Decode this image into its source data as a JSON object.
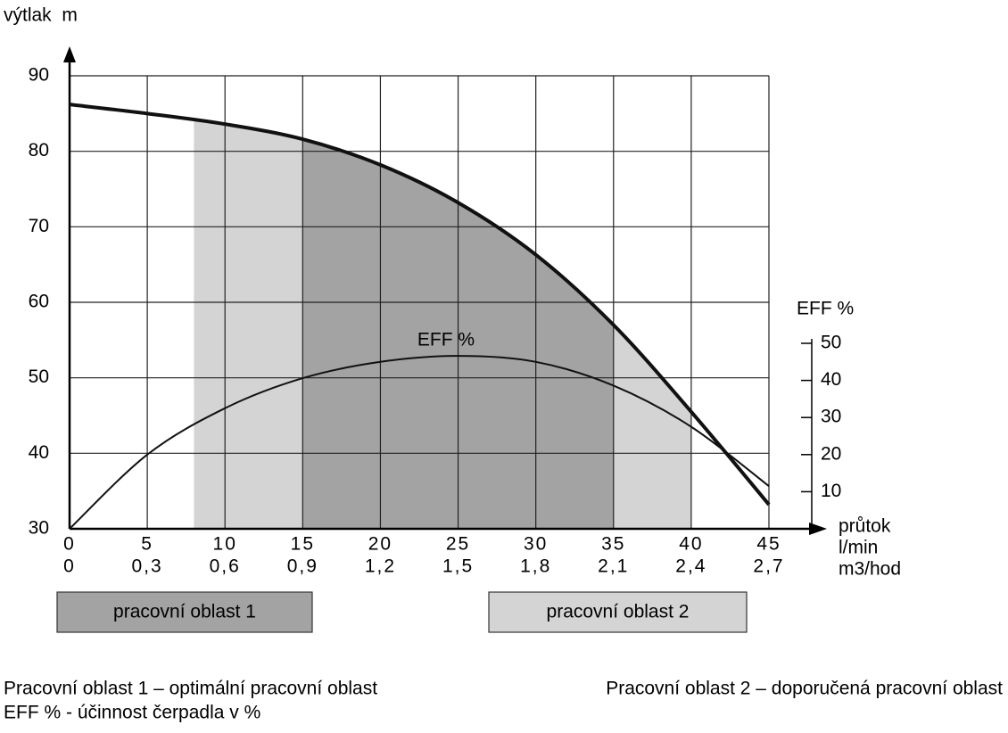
{
  "chart_data": {
    "type": "line",
    "y_label": "výtlak  m",
    "y2_label": "EFF %",
    "x_labels": [
      "průtok",
      "l/min",
      "m3/hod"
    ],
    "x": [
      0,
      5,
      10,
      15,
      20,
      25,
      30,
      35,
      40,
      45
    ],
    "x2_tick_labels": [
      "0",
      "0,3",
      "0,6",
      "0,9",
      "1,2",
      "1,5",
      "1,8",
      "2,1",
      "2,4",
      "2,7"
    ],
    "series": [
      {
        "name": "výtlak",
        "color": "#111111",
        "values": [
          86.2,
          85,
          83.6,
          81.6,
          78.2,
          73.2,
          66.3,
          57,
          45.5,
          33.2
        ]
      },
      {
        "name": "EFF %",
        "color": "#111111",
        "axis": "y2",
        "values": [
          0,
          20,
          32.5,
          40.6,
          45,
          46.6,
          45,
          38.6,
          27.5,
          11.5
        ]
      }
    ],
    "regions": [
      {
        "name": "pracovní oblast 2",
        "from": 8,
        "to": 40,
        "color": "#d4d4d4"
      },
      {
        "name": "pracovní oblast 1",
        "from": 15,
        "to": 35,
        "color": "#a3a3a3"
      }
    ],
    "xlim": [
      0,
      45
    ],
    "xticks": [
      0,
      5,
      10,
      15,
      20,
      25,
      30,
      35,
      40,
      45
    ],
    "ylim": [
      30,
      90
    ],
    "yticks": [
      30,
      40,
      50,
      60,
      70,
      80,
      90
    ],
    "y2lim": [
      0,
      50
    ],
    "y2ticks": [
      10,
      20,
      30,
      40,
      50
    ],
    "grid": true,
    "notes": [
      "Pracovní oblast 1 – optimální pracovní oblast",
      "EFF % - účinnost čerpadla v %",
      "Pracovní oblast 2 – doporučená pracovní oblast"
    ]
  }
}
